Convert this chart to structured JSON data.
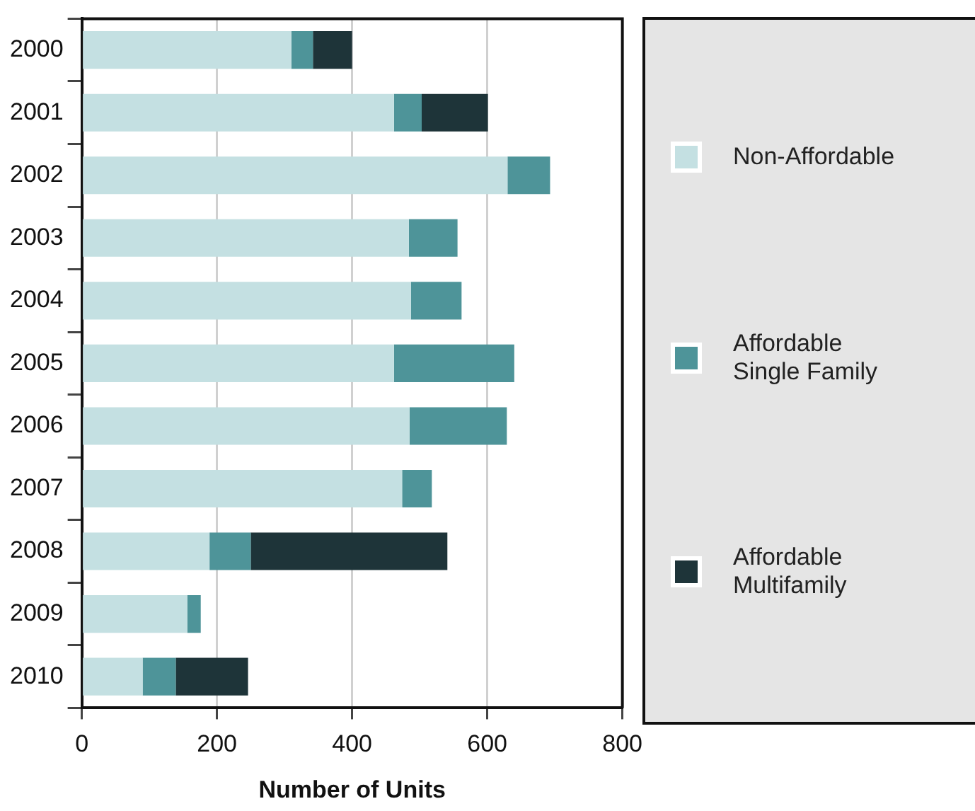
{
  "chart_data": {
    "type": "bar",
    "orientation": "horizontal",
    "stacked": true,
    "xlabel": "Number of Units",
    "categories": [
      "2000",
      "2001",
      "2002",
      "2003",
      "2004",
      "2005",
      "2006",
      "2007",
      "2008",
      "2009",
      "2010"
    ],
    "series": [
      {
        "name": "Non-Affordable",
        "color": "#c4e0e2",
        "values": [
          310,
          462,
          630,
          484,
          487,
          462,
          485,
          474,
          189,
          156,
          90
        ]
      },
      {
        "name": "Affordable Single Family",
        "color": "#4e9499",
        "values": [
          32,
          41,
          63,
          72,
          75,
          178,
          144,
          44,
          61,
          20,
          49
        ]
      },
      {
        "name": "Affordable Multifamily",
        "color": "#1e3439",
        "values": [
          58,
          98,
          null,
          null,
          null,
          null,
          null,
          null,
          291,
          null,
          107
        ]
      }
    ],
    "xlim": [
      0,
      800
    ],
    "xticks": [
      0,
      200,
      400,
      600,
      800
    ],
    "grid": "x",
    "legend": "right"
  }
}
